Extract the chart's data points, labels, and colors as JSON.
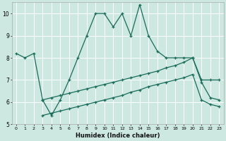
{
  "xlabel": "Humidex (Indice chaleur)",
  "bg_color": "#cce8e0",
  "grid_color": "#ffffff",
  "line_color": "#1a6b5a",
  "xlim": [
    -0.5,
    23.5
  ],
  "ylim": [
    5,
    10.5
  ],
  "yticks": [
    5,
    6,
    7,
    8,
    9,
    10
  ],
  "xticks": [
    0,
    1,
    2,
    3,
    4,
    5,
    6,
    7,
    8,
    9,
    10,
    11,
    12,
    13,
    14,
    15,
    16,
    17,
    18,
    19,
    20,
    21,
    22,
    23
  ],
  "line1_x": [
    0,
    1,
    2,
    3,
    4,
    5,
    6,
    7,
    8,
    9,
    10,
    11,
    12,
    13,
    14,
    15,
    16,
    17,
    18,
    19,
    20,
    21,
    22,
    23
  ],
  "line1_y": [
    8.2,
    8.0,
    8.2,
    6.1,
    5.4,
    6.1,
    7.0,
    8.0,
    9.0,
    10.0,
    10.0,
    9.4,
    10.0,
    9.0,
    10.4,
    9.0,
    8.3,
    8.0,
    8.0,
    8.0,
    8.0,
    7.0,
    7.0,
    7.0
  ],
  "line2_x": [
    3,
    4,
    5,
    6,
    7,
    8,
    9,
    10,
    11,
    12,
    13,
    14,
    15,
    16,
    17,
    18,
    19,
    20,
    21,
    22,
    23
  ],
  "line2_y": [
    6.1,
    6.2,
    6.3,
    6.4,
    6.5,
    6.6,
    6.7,
    6.8,
    6.9,
    7.0,
    7.1,
    7.2,
    7.3,
    7.4,
    7.55,
    7.65,
    7.8,
    8.0,
    6.9,
    6.2,
    6.1
  ],
  "line3_x": [
    3,
    4,
    5,
    6,
    7,
    8,
    9,
    10,
    11,
    12,
    13,
    14,
    15,
    16,
    17,
    18,
    19,
    20,
    21,
    22,
    23
  ],
  "line3_y": [
    5.4,
    5.5,
    5.6,
    5.7,
    5.8,
    5.9,
    6.0,
    6.1,
    6.2,
    6.3,
    6.45,
    6.55,
    6.7,
    6.8,
    6.9,
    7.0,
    7.1,
    7.25,
    6.1,
    5.9,
    5.8
  ]
}
